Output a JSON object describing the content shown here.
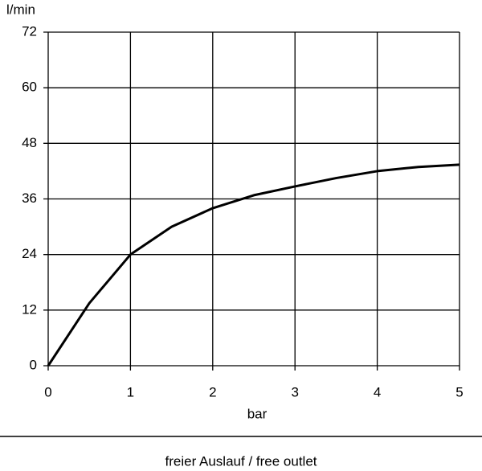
{
  "chart_data": {
    "type": "line",
    "y_label": "l/min",
    "x_label": "bar",
    "caption": "freier Auslauf / free outlet",
    "x": [
      0,
      0.5,
      1,
      1.5,
      2,
      2.5,
      3,
      3.5,
      4,
      4.5,
      5
    ],
    "series": [
      {
        "color": "#000000",
        "values": [
          0,
          13.5,
          24,
          30,
          34,
          36.8,
          38.7,
          40.5,
          42,
          42.9,
          43.4
        ]
      }
    ],
    "xlim": [
      0,
      5
    ],
    "xticks": [
      0,
      1,
      2,
      3,
      4,
      5
    ],
    "ylim": [
      0,
      72
    ],
    "yticks": [
      0,
      12,
      24,
      36,
      48,
      60,
      72
    ],
    "grid": true
  }
}
